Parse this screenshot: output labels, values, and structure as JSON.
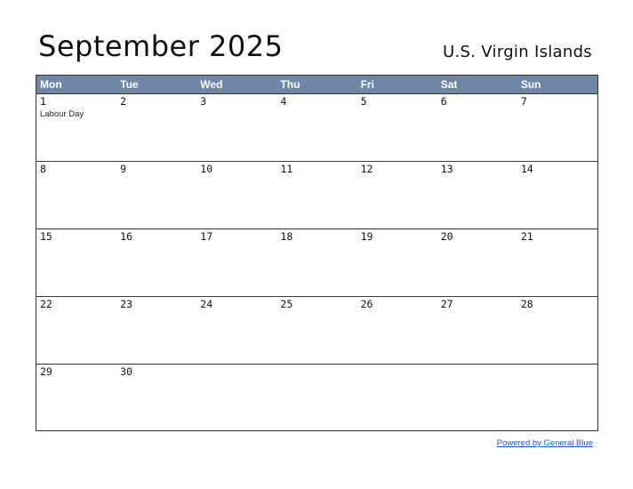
{
  "title": "September 2025",
  "region": "U.S. Virgin Islands",
  "colors": {
    "header_bg": "#6f86a6",
    "header_text": "#ffffff",
    "link": "#1a5fb4"
  },
  "weekdays": [
    "Mon",
    "Tue",
    "Wed",
    "Thu",
    "Fri",
    "Sat",
    "Sun"
  ],
  "weeks": [
    [
      {
        "day": "1",
        "holiday": "Labour Day"
      },
      {
        "day": "2"
      },
      {
        "day": "3"
      },
      {
        "day": "4"
      },
      {
        "day": "5"
      },
      {
        "day": "6"
      },
      {
        "day": "7"
      }
    ],
    [
      {
        "day": "8"
      },
      {
        "day": "9"
      },
      {
        "day": "10"
      },
      {
        "day": "11"
      },
      {
        "day": "12"
      },
      {
        "day": "13"
      },
      {
        "day": "14"
      }
    ],
    [
      {
        "day": "15"
      },
      {
        "day": "16"
      },
      {
        "day": "17"
      },
      {
        "day": "18"
      },
      {
        "day": "19"
      },
      {
        "day": "20"
      },
      {
        "day": "21"
      }
    ],
    [
      {
        "day": "22"
      },
      {
        "day": "23"
      },
      {
        "day": "24"
      },
      {
        "day": "25"
      },
      {
        "day": "26"
      },
      {
        "day": "27"
      },
      {
        "day": "28"
      }
    ],
    [
      {
        "day": "29"
      },
      {
        "day": "30"
      },
      {
        "day": ""
      },
      {
        "day": ""
      },
      {
        "day": ""
      },
      {
        "day": ""
      },
      {
        "day": ""
      }
    ]
  ],
  "footer_link": "Powered by General Blue"
}
